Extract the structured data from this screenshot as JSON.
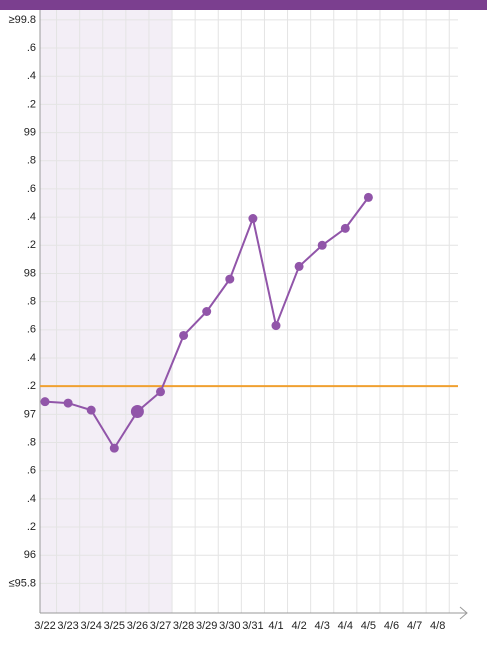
{
  "chart_data": {
    "type": "line",
    "categories": [
      "3/22",
      "3/23",
      "3/24",
      "3/25",
      "3/26",
      "3/27",
      "3/28",
      "3/29",
      "3/30",
      "3/31",
      "4/1",
      "4/2",
      "4/3",
      "4/4",
      "4/5",
      "4/6",
      "4/7",
      "4/8"
    ],
    "series": [
      {
        "color": "#9155a9",
        "values": [
          97.09,
          97.08,
          97.03,
          96.76,
          97.02,
          97.16,
          97.56,
          97.73,
          97.96,
          98.39,
          97.63,
          98.05,
          98.2,
          98.32,
          98.54,
          null,
          null,
          null
        ]
      }
    ],
    "highlight_index": 4,
    "shade": {
      "from": "3/22",
      "to": "3/27",
      "color": "#f3eef6"
    },
    "coverline": 97.2,
    "coverline_color": "#f0a030",
    "ylim": [
      95.59,
      99.87
    ],
    "yticks": [
      {
        "value": 99.8,
        "label": "≥99.8"
      },
      {
        "value": 99.6,
        "label": ".6"
      },
      {
        "value": 99.4,
        "label": ".4"
      },
      {
        "value": 99.2,
        "label": ".2"
      },
      99,
      {
        "value": 98.8,
        "label": ".8"
      },
      {
        "value": 98.6,
        "label": ".6"
      },
      {
        "value": 98.4,
        "label": ".4"
      },
      {
        "value": 98.2,
        "label": ".2"
      },
      98,
      {
        "value": 97.8,
        "label": ".8"
      },
      {
        "value": 97.6,
        "label": ".6"
      },
      {
        "value": 97.4,
        "label": ".4"
      },
      {
        "value": 97.2,
        "label": ".2"
      },
      97,
      {
        "value": 96.8,
        "label": ".8"
      },
      {
        "value": 96.6,
        "label": ".6"
      },
      {
        "value": 96.4,
        "label": ".4"
      },
      {
        "value": 96.2,
        "label": ".2"
      },
      96,
      {
        "value": 95.8,
        "label": "≤95.8"
      }
    ],
    "grid": true
  }
}
